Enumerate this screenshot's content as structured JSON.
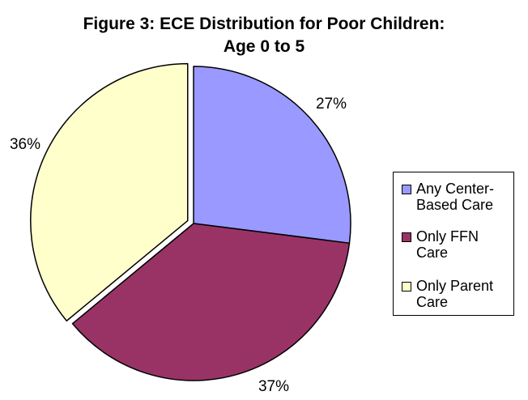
{
  "title_lines": [
    "Figure 3: ECE Distribution for Poor Children:",
    "Age 0 to 5"
  ],
  "chart_data": {
    "type": "pie",
    "title": "Figure 3: ECE Distribution for Poor Children: Age 0 to 5",
    "legend_position": "right",
    "slices": [
      {
        "name": "Any Center-Based Care",
        "legend_text": "Any Center-\nBased Care",
        "value": 27,
        "label": "27%",
        "color": "#9999ff"
      },
      {
        "name": "Only FFN Care",
        "legend_text": "Only FFN\nCare",
        "value": 37,
        "label": "37%",
        "color": "#993366"
      },
      {
        "name": "Only Parent Care",
        "legend_text": "Only Parent\nCare",
        "value": 36,
        "label": "36%",
        "color": "#ffffcc"
      }
    ]
  }
}
